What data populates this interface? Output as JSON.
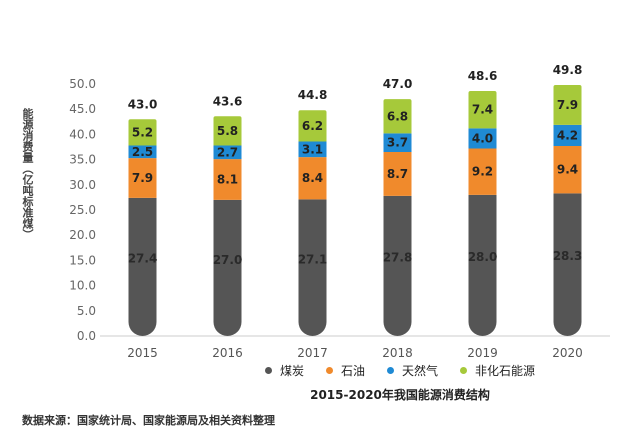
{
  "chart_data": {
    "type": "bar",
    "stacked": true,
    "title": "2015-2020年我国能源消费结构",
    "ylabel": "能源消费量（亿吨标准煤）",
    "ylim": [
      0,
      50
    ],
    "yticks": [
      "0.0",
      "5.0",
      "10.0",
      "15.0",
      "20.0",
      "25.0",
      "30.0",
      "35.0",
      "40.0",
      "45.0",
      "50.0"
    ],
    "categories": [
      "2015",
      "2016",
      "2017",
      "2018",
      "2019",
      "2020"
    ],
    "series": [
      {
        "name": "煤炭",
        "color": "#555555",
        "values": [
          27.4,
          27.0,
          27.1,
          27.8,
          28.0,
          28.3
        ],
        "labels": [
          "27.4",
          "27.0",
          "27.1",
          "27.8",
          "28.0",
          "28.3"
        ]
      },
      {
        "name": "石油",
        "color": "#f08a2c",
        "values": [
          7.9,
          8.1,
          8.4,
          8.7,
          9.2,
          9.4
        ],
        "labels": [
          "7.9",
          "8.1",
          "8.4",
          "8.7",
          "9.2",
          "9.4"
        ]
      },
      {
        "name": "天然气",
        "color": "#1f8ad4",
        "values": [
          2.5,
          2.7,
          3.1,
          3.7,
          4.0,
          4.2
        ],
        "labels": [
          "2.5",
          "2.7",
          "3.1",
          "3.7",
          "4.0",
          "4.2"
        ]
      },
      {
        "name": "非化石能源",
        "color": "#a6c93a",
        "values": [
          5.2,
          5.8,
          6.2,
          6.8,
          7.4,
          7.9
        ],
        "labels": [
          "5.2",
          "5.8",
          "6.2",
          "6.8",
          "7.4",
          "7.9"
        ]
      }
    ],
    "totals": [
      "43.0",
      "43.6",
      "44.8",
      "47.0",
      "48.6",
      "49.8"
    ],
    "grid": false,
    "legend_position": "bottom"
  },
  "source": "数据来源：国家统计局、国家能源局及相关资料整理"
}
